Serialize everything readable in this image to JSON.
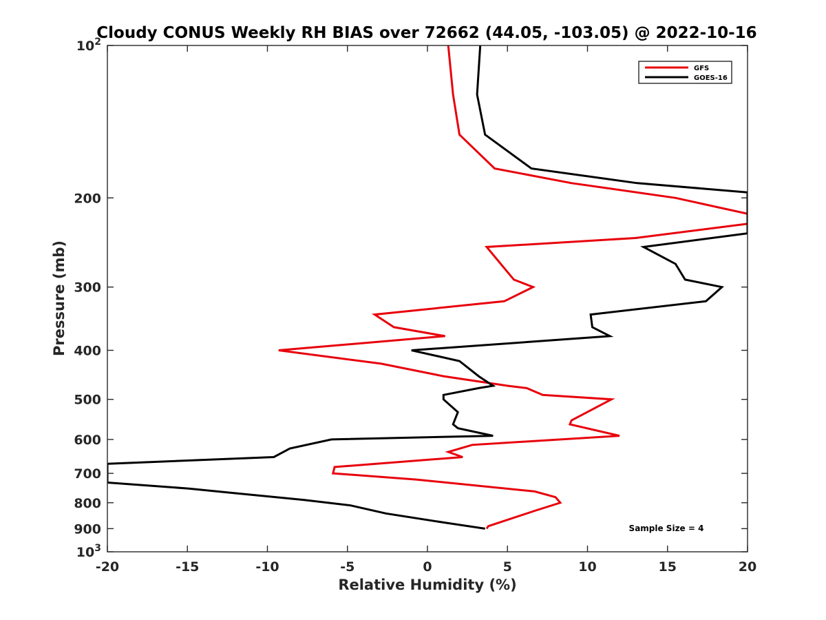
{
  "chart_data": {
    "type": "line",
    "title": "Cloudy CONUS Weekly RH BIAS over 72662 (44.05, -103.05) @ 2022-10-16",
    "xlabel": "Relative Humidity (%)",
    "ylabel": "Pressure (mb)",
    "xlim": [
      -20,
      20
    ],
    "ylim": [
      100,
      1000
    ],
    "y_scale": "log",
    "y_reversed": true,
    "x_ticks": [
      -20,
      -15,
      -10,
      -5,
      0,
      5,
      10,
      15,
      20
    ],
    "x_tick_labels": [
      "-20",
      "-15",
      "-10",
      "-5",
      "0",
      "5",
      "10",
      "15",
      "20"
    ],
    "y_ticks": [
      100,
      200,
      300,
      400,
      500,
      600,
      700,
      800,
      900,
      1000
    ],
    "y_tick_labels": [
      {
        "base": "10",
        "exp": "2"
      },
      {
        "base": "200",
        "exp": ""
      },
      {
        "base": "300",
        "exp": ""
      },
      {
        "base": "400",
        "exp": ""
      },
      {
        "base": "500",
        "exp": ""
      },
      {
        "base": "600",
        "exp": ""
      },
      {
        "base": "700",
        "exp": ""
      },
      {
        "base": "800",
        "exp": ""
      },
      {
        "base": "900",
        "exp": ""
      },
      {
        "base": "10",
        "exp": "3"
      }
    ],
    "grid": false,
    "legend_position": "top-right",
    "annotation": "Sample Size = 4",
    "series": [
      {
        "name": "GFS",
        "color": "#e8000b",
        "points": [
          [
            1.3,
            100
          ],
          [
            1.6,
            125
          ],
          [
            2.0,
            150
          ],
          [
            4.2,
            175
          ],
          [
            9.0,
            187
          ],
          [
            15.5,
            200
          ],
          [
            20.0,
            215
          ],
          [
            20.0,
            225
          ],
          [
            13.0,
            240
          ],
          [
            3.7,
            250
          ],
          [
            5.4,
            290
          ],
          [
            6.6,
            300
          ],
          [
            4.8,
            320
          ],
          [
            -3.3,
            340
          ],
          [
            -2.1,
            360
          ],
          [
            1.1,
            375
          ],
          [
            -9.3,
            400
          ],
          [
            -2.9,
            425
          ],
          [
            1.0,
            450
          ],
          [
            5.0,
            470
          ],
          [
            6.2,
            475
          ],
          [
            7.2,
            490
          ],
          [
            11.5,
            500
          ],
          [
            9.0,
            550
          ],
          [
            8.9,
            560
          ],
          [
            12.0,
            590
          ],
          [
            2.8,
            615
          ],
          [
            1.3,
            635
          ],
          [
            2.2,
            650
          ],
          [
            -5.8,
            680
          ],
          [
            -5.9,
            700
          ],
          [
            -0.7,
            720
          ],
          [
            6.7,
            760
          ],
          [
            8.0,
            780
          ],
          [
            8.3,
            800
          ],
          [
            6.7,
            830
          ],
          [
            3.8,
            890
          ],
          [
            3.7,
            900
          ]
        ]
      },
      {
        "name": "GOES-16",
        "color": "#000000",
        "points": [
          [
            3.3,
            100
          ],
          [
            3.1,
            125
          ],
          [
            3.6,
            150
          ],
          [
            6.5,
            175
          ],
          [
            13.1,
            187
          ],
          [
            20.0,
            195
          ],
          [
            20.0,
            235
          ],
          [
            13.5,
            250
          ],
          [
            15.5,
            270
          ],
          [
            16.1,
            290
          ],
          [
            18.4,
            300
          ],
          [
            17.4,
            320
          ],
          [
            10.2,
            340
          ],
          [
            10.3,
            360
          ],
          [
            11.4,
            375
          ],
          [
            -1.0,
            400
          ],
          [
            2.0,
            420
          ],
          [
            3.2,
            450
          ],
          [
            4.1,
            470
          ],
          [
            3.2,
            475
          ],
          [
            1.0,
            490
          ],
          [
            1.0,
            500
          ],
          [
            1.9,
            530
          ],
          [
            1.6,
            560
          ],
          [
            1.9,
            570
          ],
          [
            4.1,
            590
          ],
          [
            -6.0,
            600
          ],
          [
            -8.6,
            625
          ],
          [
            -9.6,
            650
          ],
          [
            -20.0,
            670
          ],
          [
            -20.0,
            730
          ],
          [
            -14.9,
            750
          ],
          [
            -12.2,
            765
          ],
          [
            -7.7,
            790
          ],
          [
            -4.8,
            810
          ],
          [
            -2.6,
            840
          ],
          [
            1.0,
            875
          ],
          [
            3.6,
            900
          ]
        ]
      }
    ]
  }
}
